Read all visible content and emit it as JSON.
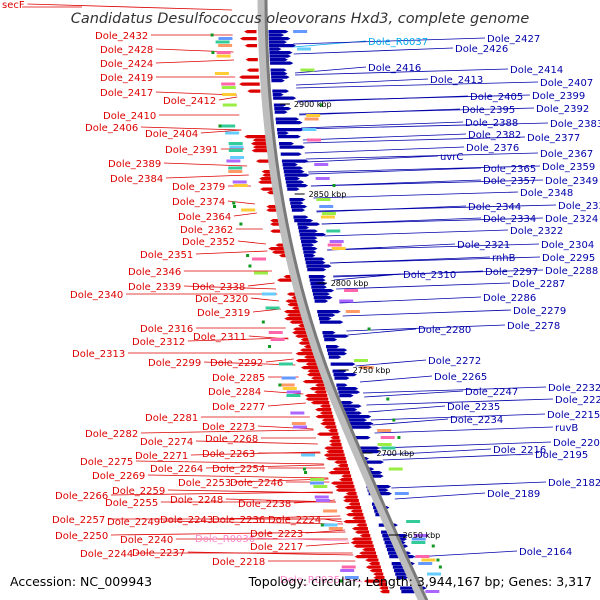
{
  "title": "Candidatus Desulfococcus oleovorans Hxd3, complete genome",
  "footer": {
    "accession": "Accession: NC_009943",
    "summary": "Topology: circular; Length: 3,944,167 bp; Genes: 3,317"
  },
  "colors": {
    "reverse_strand": "#dd0000",
    "forward_strand": "#0000aa",
    "rna": "#ff88cc",
    "rna_forward": "#00aaee",
    "backbone": "#999999"
  },
  "ticks": [
    "2900 kbp",
    "2850 kbp",
    "2800 kbp",
    "2750 kbp",
    "2700 kbp",
    "2650 kbp"
  ],
  "left_labels": [
    {
      "text": "secF",
      "rna": false
    },
    {
      "text": "Dole_2432",
      "rna": false
    },
    {
      "text": "Dole_2428",
      "rna": false
    },
    {
      "text": "Dole_2424",
      "rna": false
    },
    {
      "text": "Dole_2419",
      "rna": false
    },
    {
      "text": "Dole_2417",
      "rna": false
    },
    {
      "text": "Dole_2412",
      "rna": false
    },
    {
      "text": "Dole_2410",
      "rna": false
    },
    {
      "text": "Dole_2406",
      "rna": false
    },
    {
      "text": "Dole_2404",
      "rna": false
    },
    {
      "text": "Dole_2391",
      "rna": false
    },
    {
      "text": "Dole_2389",
      "rna": false
    },
    {
      "text": "Dole_2384",
      "rna": false
    },
    {
      "text": "Dole_2379",
      "rna": false
    },
    {
      "text": "Dole_2374",
      "rna": false
    },
    {
      "text": "Dole_2364",
      "rna": false
    },
    {
      "text": "Dole_2362",
      "rna": false
    },
    {
      "text": "Dole_2352",
      "rna": false
    },
    {
      "text": "Dole_2351",
      "rna": false
    },
    {
      "text": "Dole_2346",
      "rna": false
    },
    {
      "text": "Dole_2339",
      "rna": false
    },
    {
      "text": "Dole_2338",
      "rna": false
    },
    {
      "text": "Dole_2340",
      "rna": false
    },
    {
      "text": "Dole_2320",
      "rna": false
    },
    {
      "text": "Dole_2319",
      "rna": false
    },
    {
      "text": "Dole_2316",
      "rna": false
    },
    {
      "text": "Dole_2311",
      "rna": false
    },
    {
      "text": "Dole_2312",
      "rna": false
    },
    {
      "text": "Dole_2313",
      "rna": false
    },
    {
      "text": "Dole_2299",
      "rna": false
    },
    {
      "text": "Dole_2292",
      "rna": false
    },
    {
      "text": "Dole_2285",
      "rna": false
    },
    {
      "text": "Dole_2284",
      "rna": false
    },
    {
      "text": "Dole_2277",
      "rna": false
    },
    {
      "text": "Dole_2281",
      "rna": false
    },
    {
      "text": "Dole_2273",
      "rna": false
    },
    {
      "text": "Dole_2282",
      "rna": false
    },
    {
      "text": "Dole_2268",
      "rna": false
    },
    {
      "text": "Dole_2274",
      "rna": false
    },
    {
      "text": "Dole_2271",
      "rna": false
    },
    {
      "text": "Dole_2263",
      "rna": false
    },
    {
      "text": "Dole_2275",
      "rna": false
    },
    {
      "text": "Dole_2264",
      "rna": false
    },
    {
      "text": "Dole_2254",
      "rna": false
    },
    {
      "text": "Dole_2269",
      "rna": false
    },
    {
      "text": "Dole_2253",
      "rna": false
    },
    {
      "text": "Dole_2246",
      "rna": false
    },
    {
      "text": "Dole_2259",
      "rna": false
    },
    {
      "text": "Dole_2266",
      "rna": false
    },
    {
      "text": "Dole_2255",
      "rna": false
    },
    {
      "text": "Dole_2248",
      "rna": false
    },
    {
      "text": "Dole_2238",
      "rna": false
    },
    {
      "text": "Dole_2257",
      "rna": false
    },
    {
      "text": "Dole_2249",
      "rna": false
    },
    {
      "text": "Dole_2243",
      "rna": false
    },
    {
      "text": "Dole_2236",
      "rna": false
    },
    {
      "text": "Dole_2224",
      "rna": false
    },
    {
      "text": "Dole_2250",
      "rna": false
    },
    {
      "text": "Dole_2240",
      "rna": false
    },
    {
      "text": "Dole_R0036",
      "rna": true
    },
    {
      "text": "Dole_2223",
      "rna": false
    },
    {
      "text": "Dole_2244",
      "rna": false
    },
    {
      "text": "Dole_2237",
      "rna": false
    },
    {
      "text": "Dole_2217",
      "rna": false
    },
    {
      "text": "Dole_2218",
      "rna": false
    },
    {
      "text": "Dole_R0035",
      "rna": true
    }
  ],
  "right_labels": [
    {
      "text": "Dole_R0037",
      "rna": true
    },
    {
      "text": "Dole_2427",
      "rna": false
    },
    {
      "text": "Dole_2426",
      "rna": false
    },
    {
      "text": "Dole_2416",
      "rna": false
    },
    {
      "text": "Dole_2414",
      "rna": false
    },
    {
      "text": "Dole_2413",
      "rna": false
    },
    {
      "text": "Dole_2407",
      "rna": false
    },
    {
      "text": "Dole_2405",
      "rna": false
    },
    {
      "text": "Dole_2399",
      "rna": false
    },
    {
      "text": "Dole_2395",
      "rna": false
    },
    {
      "text": "Dole_2392",
      "rna": false
    },
    {
      "text": "Dole_2388",
      "rna": false
    },
    {
      "text": "Dole_2383",
      "rna": false
    },
    {
      "text": "Dole_2382",
      "rna": false
    },
    {
      "text": "Dole_2377",
      "rna": false
    },
    {
      "text": "Dole_2376",
      "rna": false
    },
    {
      "text": "uvrC",
      "rna": false
    },
    {
      "text": "Dole_2367",
      "rna": false
    },
    {
      "text": "Dole_2365",
      "rna": false
    },
    {
      "text": "Dole_2359",
      "rna": false
    },
    {
      "text": "Dole_2357",
      "rna": false
    },
    {
      "text": "Dole_2349",
      "rna": false
    },
    {
      "text": "Dole_2348",
      "rna": false
    },
    {
      "text": "Dole_2344",
      "rna": false
    },
    {
      "text": "Dole_2335",
      "rna": false
    },
    {
      "text": "Dole_2334",
      "rna": false
    },
    {
      "text": "Dole_2324",
      "rna": false
    },
    {
      "text": "Dole_2322",
      "rna": false
    },
    {
      "text": "Dole_2321",
      "rna": false
    },
    {
      "text": "Dole_2304",
      "rna": false
    },
    {
      "text": "rnhB",
      "rna": false
    },
    {
      "text": "Dole_2295",
      "rna": false
    },
    {
      "text": "Dole_2310",
      "rna": false
    },
    {
      "text": "Dole_2297",
      "rna": false
    },
    {
      "text": "Dole_2288",
      "rna": false
    },
    {
      "text": "Dole_2287",
      "rna": false
    },
    {
      "text": "Dole_2286",
      "rna": false
    },
    {
      "text": "Dole_2279",
      "rna": false
    },
    {
      "text": "Dole_2278",
      "rna": false
    },
    {
      "text": "Dole_2280",
      "rna": false
    },
    {
      "text": "Dole_2272",
      "rna": false
    },
    {
      "text": "Dole_2265",
      "rna": false
    },
    {
      "text": "Dole_2232",
      "rna": false
    },
    {
      "text": "Dole_2247",
      "rna": false
    },
    {
      "text": "Dole_2225",
      "rna": false
    },
    {
      "text": "Dole_2235",
      "rna": false
    },
    {
      "text": "Dole_2215",
      "rna": false
    },
    {
      "text": "Dole_2234",
      "rna": false
    },
    {
      "text": "ruvB",
      "rna": false
    },
    {
      "text": "Dole_2202",
      "rna": false
    },
    {
      "text": "Dole_2216",
      "rna": false
    },
    {
      "text": "Dole_2195",
      "rna": false
    },
    {
      "text": "Dole_2182",
      "rna": false
    },
    {
      "text": "Dole_2189",
      "rna": false
    },
    {
      "text": "Dole_2164",
      "rna": false
    }
  ]
}
